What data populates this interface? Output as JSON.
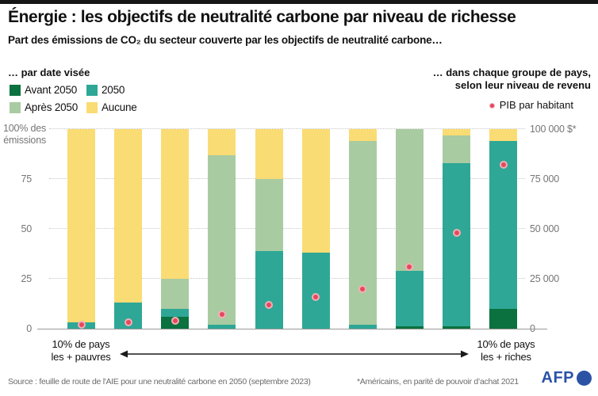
{
  "header": {
    "title": "Énergie : les objectifs de neutralité carbone par niveau de richesse",
    "subtitle": "Part des émissions de CO₂ du secteur couverte par les objectifs de neutralité carbone…"
  },
  "legend_left": {
    "title": "… par date visée",
    "items": [
      {
        "label": "Avant 2050",
        "color": "#0a713f"
      },
      {
        "label": "2050",
        "color": "#2ea796"
      },
      {
        "label": "Après 2050",
        "color": "#a9cba1"
      },
      {
        "label": "Aucune",
        "color": "#fadc74"
      }
    ]
  },
  "legend_right": {
    "line1": "… dans chaque groupe de pays,",
    "line2": "selon leur niveau de revenu",
    "dot_label": "PIB par habitant"
  },
  "axis_left": {
    "unit_line1": "100% des",
    "unit_line2": "émissions",
    "ticks": [
      {
        "label": "75",
        "value": 75
      },
      {
        "label": "50",
        "value": 50
      },
      {
        "label": "25",
        "value": 25
      },
      {
        "label": "0",
        "value": 0
      }
    ]
  },
  "axis_right": {
    "ticks": [
      {
        "label": "100 000 $*",
        "value": 100
      },
      {
        "label": "75 000",
        "value": 75
      },
      {
        "label": "50 000",
        "value": 50
      },
      {
        "label": "25 000",
        "value": 25
      },
      {
        "label": "0",
        "value": 0
      }
    ]
  },
  "xaxis": {
    "left_line1": "10% de pays",
    "left_line2": "les + pauvres",
    "right_line1": "10% de pays",
    "right_line2": "les + riches"
  },
  "footer": {
    "source": "Source : feuille de route de l'AIE pour une neutralité carbone en 2050 (septembre 2023)",
    "note": "*Américains, en parité de pouvoir d’achat 2021",
    "logo": "AFP"
  },
  "colors": {
    "afp_blue": "#2b52a5",
    "dot_red": "#e5485c",
    "dot_ring": "#f3aeb7",
    "grid_gray": "#c6c6c6",
    "axis_gray": "#999999",
    "label_gray": "#767676",
    "text_black": "#111111",
    "topbar_black": "#161616"
  },
  "chart_data": {
    "type": "bar",
    "stacked": true,
    "title": "Part des émissions de CO₂ du secteur couverte par les objectifs de neutralité carbone, par date visée, dans chaque groupe de pays selon leur niveau de revenu",
    "categories": [
      1,
      2,
      3,
      4,
      5,
      6,
      7,
      8,
      9,
      10
    ],
    "x_axis_annotation": {
      "left": "10% de pays les + pauvres",
      "right": "10% de pays les + riches"
    },
    "series": [
      {
        "name": "Avant 2050",
        "color": "#0a713f",
        "values": [
          0,
          0,
          6,
          0,
          0,
          0,
          0,
          1,
          1,
          10
        ]
      },
      {
        "name": "2050",
        "color": "#2ea796",
        "values": [
          3,
          13,
          4,
          2,
          39,
          38,
          2,
          28,
          82,
          84
        ]
      },
      {
        "name": "Après 2050",
        "color": "#a9cba1",
        "values": [
          0,
          0,
          15,
          85,
          36,
          0,
          92,
          71,
          14,
          0
        ]
      },
      {
        "name": "Aucune",
        "color": "#fadc74",
        "values": [
          97,
          87,
          75,
          13,
          25,
          62,
          6,
          0,
          3,
          6
        ]
      }
    ],
    "dots": {
      "name": "PIB par habitant",
      "color": "#e5485c",
      "values_usd": [
        2000,
        3000,
        4000,
        7000,
        12000,
        16000,
        20000,
        31000,
        48000,
        82000
      ]
    },
    "ylim_left_percent": [
      0,
      100
    ],
    "ylim_right_usd": [
      0,
      100000
    ],
    "gridlines_percent": [
      25,
      50,
      75,
      100
    ]
  }
}
